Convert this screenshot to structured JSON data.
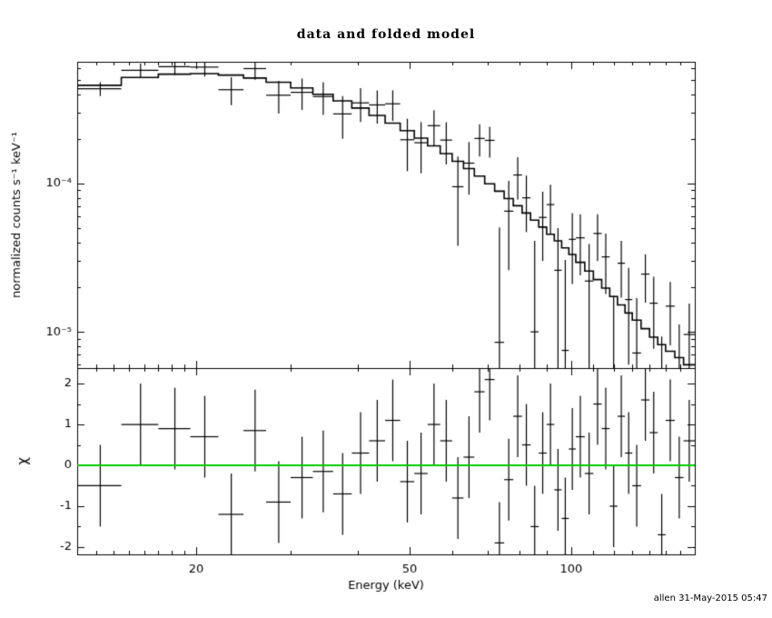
{
  "title": "data and folded model",
  "footer": "allen 31-May-2015 05:47",
  "chart_data": {
    "type": "scatter",
    "title": "data and folded model",
    "xlabel": "Energy (keV)",
    "x_scale": "log",
    "xlim": [
      12,
      170
    ],
    "x_ticks": [
      {
        "v": 20,
        "label": "20"
      },
      {
        "v": 50,
        "label": "50"
      },
      {
        "v": 100,
        "label": "100"
      }
    ],
    "x_minor_ticks": [
      13,
      14,
      15,
      16,
      17,
      18,
      19,
      30,
      40,
      60,
      70,
      80,
      90,
      110,
      120,
      130,
      140,
      150,
      160
    ],
    "panels": {
      "top": {
        "ylabel": "normalized counts s⁻¹ keV⁻¹",
        "y_scale": "log",
        "ylim": [
          5.7e-06,
          0.00066
        ],
        "y_ticks": [
          {
            "v": 0.0001,
            "label": "10⁻⁴"
          },
          {
            "v": 1e-05,
            "label": "10⁻⁵"
          }
        ],
        "y_minor_ticks": [
          6e-06,
          7e-06,
          8e-06,
          9e-06,
          2e-05,
          3e-05,
          4e-05,
          5e-05,
          6e-05,
          7e-05,
          8e-05,
          9e-05,
          0.0002,
          0.0003,
          0.0004,
          0.0005,
          0.0006
        ]
      },
      "bottom": {
        "ylabel": "χ",
        "y_scale": "linear",
        "ylim": [
          -2.18,
          2.38
        ],
        "y_ticks": [
          {
            "v": 2,
            "label": "2"
          },
          {
            "v": 1,
            "label": "1"
          },
          {
            "v": 0,
            "label": "0"
          },
          {
            "v": -1,
            "label": "-1"
          },
          {
            "v": -2,
            "label": "-2"
          }
        ],
        "y_minor_ticks": [
          -1.5,
          -0.5,
          0.5,
          1.5
        ],
        "zero_line_value": 0,
        "zero_line_color": "#00cc00"
      }
    },
    "colors": {
      "data": "#000000",
      "model": "#000000",
      "frame": "#000000"
    },
    "series": {
      "bin_edges": [
        12,
        14.5,
        17,
        19.5,
        22,
        24.5,
        27,
        30,
        33,
        36,
        39,
        42,
        45,
        48,
        51,
        54,
        57,
        60,
        63,
        66,
        69,
        72,
        75,
        78,
        81,
        84,
        87,
        90,
        93,
        96,
        99,
        102,
        106,
        110,
        114,
        118,
        122,
        126,
        130,
        135,
        140,
        145,
        150,
        156,
        162,
        170
      ],
      "energy": [
        13.25,
        15.75,
        18.25,
        20.75,
        23.25,
        25.75,
        28.5,
        31.5,
        34.5,
        37.5,
        40.5,
        43.5,
        46.5,
        49.5,
        52.5,
        55.5,
        58.5,
        61.5,
        64.5,
        67.5,
        70.5,
        73.5,
        76.5,
        79.5,
        82.5,
        85.5,
        88.5,
        91.5,
        94.5,
        97.5,
        100.5,
        104,
        108,
        112,
        116,
        120,
        124,
        128,
        132.5,
        137.5,
        142.5,
        147.5,
        153,
        159,
        166
      ],
      "counts": [
        0.000435,
        0.000579,
        0.000612,
        0.000608,
        0.000428,
        0.000594,
        0.000393,
        0.000411,
        0.000385,
        0.000294,
        0.000349,
        0.000338,
        0.000344,
        0.000197,
        0.000188,
        0.000245,
        0.000196,
        9.5e-05,
        0.000137,
        0.000201,
        0.000195,
        8.5e-06,
        6.5e-05,
        0.000114,
        8e-05,
        1e-05,
        5.9e-05,
        7.2e-05,
        2.6e-05,
        7.5e-06,
        4.2e-05,
        4.3e-05,
        2.2e-05,
        4.6e-05,
        3.2e-05,
        4.5e-06,
        2.9e-05,
        1.65e-05,
        7.2e-06,
        2.45e-05,
        1.56e-05,
        2e-06,
        1.49e-05,
        4.8e-06,
        9.6e-06
      ],
      "counts_err": [
        4.7e-05,
        6.2e-05,
        7.4e-05,
        8.3e-05,
        9.1e-05,
        9.5e-05,
        9.8e-05,
        9.8e-05,
        9.6e-05,
        9.4e-05,
        9e-05,
        8.5e-05,
        8e-05,
        7.6e-05,
        7.1e-05,
        6.6e-05,
        6.2e-05,
        5.7e-05,
        5.3e-05,
        4.9e-05,
        4.6e-05,
        4.2e-05,
        3.9e-05,
        3.6e-05,
        3.3e-05,
        3.1e-05,
        2.9e-05,
        2.6e-05,
        2.4e-05,
        2.3e-05,
        2.1e-05,
        1.9e-05,
        1.7e-05,
        1.6e-05,
        1.4e-05,
        1.3e-05,
        1.2e-05,
        1.05e-05,
        9.7e-06,
        8.8e-06,
        7.9e-06,
        7.3e-06,
        6.8e-06,
        6.4e-06,
        5.9e-06
      ],
      "model": [
        0.000458,
        0.000517,
        0.000545,
        0.000549,
        0.000537,
        0.000513,
        0.000481,
        0.00044,
        0.000399,
        0.00036,
        0.000322,
        0.000287,
        0.000255,
        0.000227,
        0.000202,
        0.000179,
        0.000159,
        0.000141,
        0.000126,
        0.000112,
        9.95e-05,
        8.87e-05,
        7.91e-05,
        7.07e-05,
        6.32e-05,
        5.66e-05,
        5.08e-05,
        4.55e-05,
        4.1e-05,
        3.68e-05,
        3.32e-05,
        2.94e-05,
        2.57e-05,
        2.25e-05,
        1.97e-05,
        1.73e-05,
        1.52e-05,
        1.34e-05,
        1.2e-05,
        1.05e-05,
        9.2e-06,
        8.2e-06,
        7.4e-06,
        6.7e-06,
        6e-06
      ],
      "chi": [
        -0.5,
        1.0,
        0.9,
        0.7,
        -1.2,
        0.85,
        -0.9,
        -0.3,
        -0.15,
        -0.7,
        0.3,
        0.6,
        1.1,
        -0.4,
        -0.2,
        1.0,
        0.6,
        -0.8,
        0.2,
        1.8,
        2.1,
        -1.9,
        -0.35,
        1.2,
        0.5,
        -1.5,
        0.3,
        1.0,
        -0.6,
        -1.3,
        0.4,
        0.7,
        -0.2,
        1.5,
        0.9,
        -1.0,
        1.2,
        0.3,
        -0.5,
        1.6,
        0.8,
        -1.7,
        1.1,
        -0.3,
        0.6
      ],
      "chi_err": 1.0
    }
  }
}
